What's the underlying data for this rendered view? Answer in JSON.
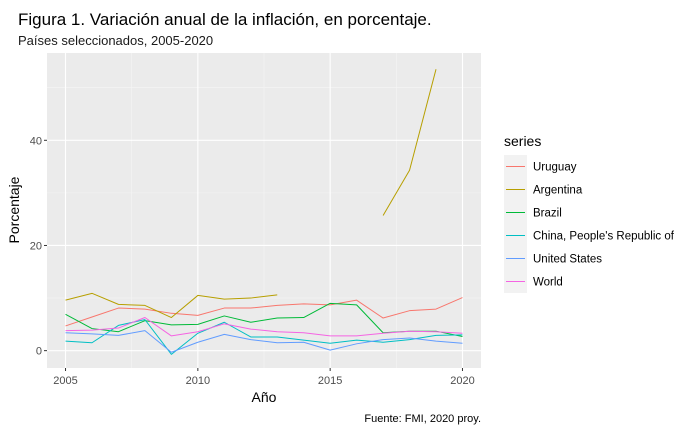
{
  "chart_data": {
    "type": "line",
    "title": "Figura 1. Variación anual de la inflación, en porcentaje.",
    "subtitle": "Países seleccionados, 2005-2020",
    "xlabel": "Año",
    "ylabel": "Porcentaje",
    "caption": "Fuente: FMI, 2020 proy.",
    "legend_title": "series",
    "legend_position": "right",
    "grid": true,
    "xlim": [
      2004.3,
      2020.7
    ],
    "ylim": [
      -3.3,
      56.6
    ],
    "x_ticks": [
      2005,
      2010,
      2015,
      2020
    ],
    "y_ticks": [
      0,
      20,
      40
    ],
    "x": [
      2005,
      2006,
      2007,
      2008,
      2009,
      2010,
      2011,
      2012,
      2013,
      2014,
      2015,
      2016,
      2017,
      2018,
      2019,
      2020
    ],
    "series": [
      {
        "name": "Uruguay",
        "color": "#F8766D",
        "values": [
          4.7,
          6.4,
          8.1,
          7.9,
          7.1,
          6.7,
          8.1,
          8.1,
          8.6,
          8.9,
          8.7,
          9.6,
          6.2,
          7.6,
          7.9,
          10.1
        ]
      },
      {
        "name": "Argentina",
        "color": "#B79F00",
        "values": [
          9.6,
          10.9,
          8.8,
          8.6,
          6.3,
          10.5,
          9.8,
          10.0,
          10.6,
          null,
          null,
          null,
          25.7,
          34.3,
          53.5,
          null
        ]
      },
      {
        "name": "Brazil",
        "color": "#00BA38",
        "values": [
          6.9,
          4.2,
          3.6,
          5.7,
          4.9,
          5.0,
          6.6,
          5.4,
          6.2,
          6.3,
          9.0,
          8.7,
          3.4,
          3.7,
          3.7,
          2.7
        ]
      },
      {
        "name": "China, People's Republic of",
        "color": "#00BFC4",
        "values": [
          1.8,
          1.5,
          4.8,
          5.9,
          -0.7,
          3.3,
          5.4,
          2.6,
          2.6,
          2.0,
          1.4,
          2.0,
          1.6,
          2.1,
          2.9,
          3.0
        ]
      },
      {
        "name": "United States",
        "color": "#619CFF",
        "values": [
          3.4,
          3.2,
          2.9,
          3.8,
          -0.3,
          1.6,
          3.1,
          2.1,
          1.5,
          1.6,
          0.1,
          1.3,
          2.1,
          2.4,
          1.8,
          1.4
        ]
      },
      {
        "name": "World",
        "color": "#F564E3",
        "values": [
          3.8,
          3.9,
          4.3,
          6.3,
          2.8,
          3.6,
          5.1,
          4.1,
          3.6,
          3.4,
          2.8,
          2.8,
          3.3,
          3.7,
          3.6,
          3.3
        ]
      }
    ]
  }
}
